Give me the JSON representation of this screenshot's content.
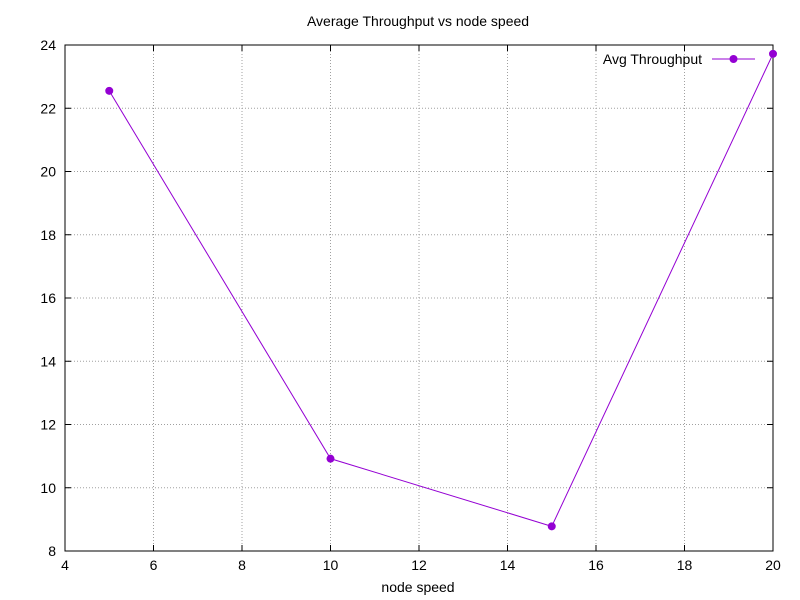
{
  "chart_data": {
    "type": "line",
    "title": "Average Throughput vs node speed",
    "xlabel": "node speed",
    "ylabel": "",
    "xlim": [
      4,
      20
    ],
    "ylim": [
      8,
      24
    ],
    "x_ticks": [
      4,
      6,
      8,
      10,
      12,
      14,
      16,
      18,
      20
    ],
    "y_ticks": [
      8,
      10,
      12,
      14,
      16,
      18,
      20,
      22,
      24
    ],
    "x_tick_labels": [
      "4",
      "6",
      "8",
      "10",
      "12",
      "14",
      "16",
      "18",
      "20"
    ],
    "y_tick_labels": [
      "8",
      "10",
      "12",
      "14",
      "16",
      "18",
      "20",
      "22",
      "24"
    ],
    "grid": true,
    "legend_position": "top-right",
    "series": [
      {
        "name": "Avg Throughput",
        "color": "#9400d3",
        "marker": "filled-circle",
        "x": [
          5,
          10,
          15,
          20
        ],
        "y": [
          22.55,
          10.92,
          8.78,
          23.72
        ]
      }
    ]
  }
}
